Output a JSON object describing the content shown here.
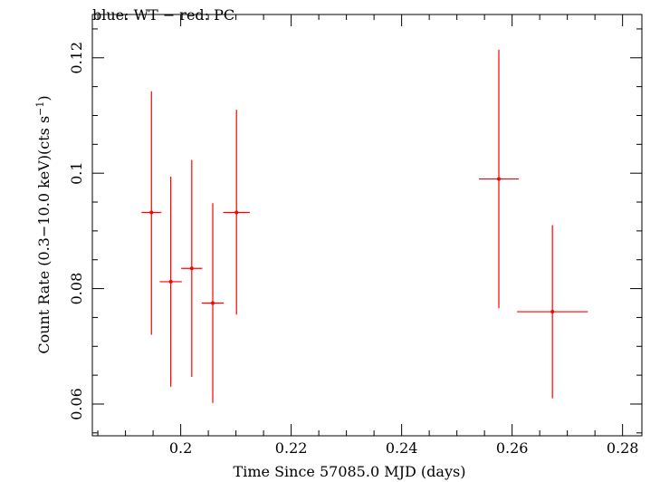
{
  "chart_data": {
    "type": "scatter",
    "title": "blue: WT − red: PC",
    "xlabel": "Time Since 57085.0 MJD (days)",
    "ylabel_main": "Count Rate (0.3−10.0 keV)(cts s",
    "ylabel_sup": "−1",
    "ylabel_close": ")",
    "xlim": [
      0.184,
      0.2835
    ],
    "ylim": [
      0.0545,
      0.1275
    ],
    "x_ticks": [
      0.2,
      0.22,
      0.24,
      0.26,
      0.28
    ],
    "x_tick_labels": [
      "0.2",
      "0.22",
      "0.24",
      "0.26",
      "0.28"
    ],
    "y_ticks": [
      0.06,
      0.08,
      0.1,
      0.12
    ],
    "y_tick_labels": [
      "0.06",
      "0.08",
      "0.1",
      "0.12"
    ],
    "grid": false,
    "series": [
      {
        "name": "PC",
        "color": "#ff0000",
        "points": [
          {
            "x": 0.1947,
            "xerr": 0.0018,
            "y": 0.0932,
            "yerr_lo": 0.0212,
            "yerr_hi": 0.021
          },
          {
            "x": 0.1982,
            "xerr": 0.002,
            "y": 0.0812,
            "yerr_lo": 0.0182,
            "yerr_hi": 0.0182
          },
          {
            "x": 0.202,
            "xerr": 0.0019,
            "y": 0.0835,
            "yerr_lo": 0.0188,
            "yerr_hi": 0.0188
          },
          {
            "x": 0.2058,
            "xerr": 0.002,
            "y": 0.0775,
            "yerr_lo": 0.0173,
            "yerr_hi": 0.0173
          },
          {
            "x": 0.2101,
            "xerr": 0.0024,
            "y": 0.0932,
            "yerr_lo": 0.0177,
            "yerr_hi": 0.0178
          },
          {
            "x": 0.2576,
            "xerr": 0.0036,
            "y": 0.099,
            "yerr_lo": 0.0224,
            "yerr_hi": 0.0224
          },
          {
            "x": 0.2673,
            "xerr": 0.0064,
            "y": 0.076,
            "yerr_lo": 0.015,
            "yerr_hi": 0.015
          }
        ]
      }
    ]
  }
}
